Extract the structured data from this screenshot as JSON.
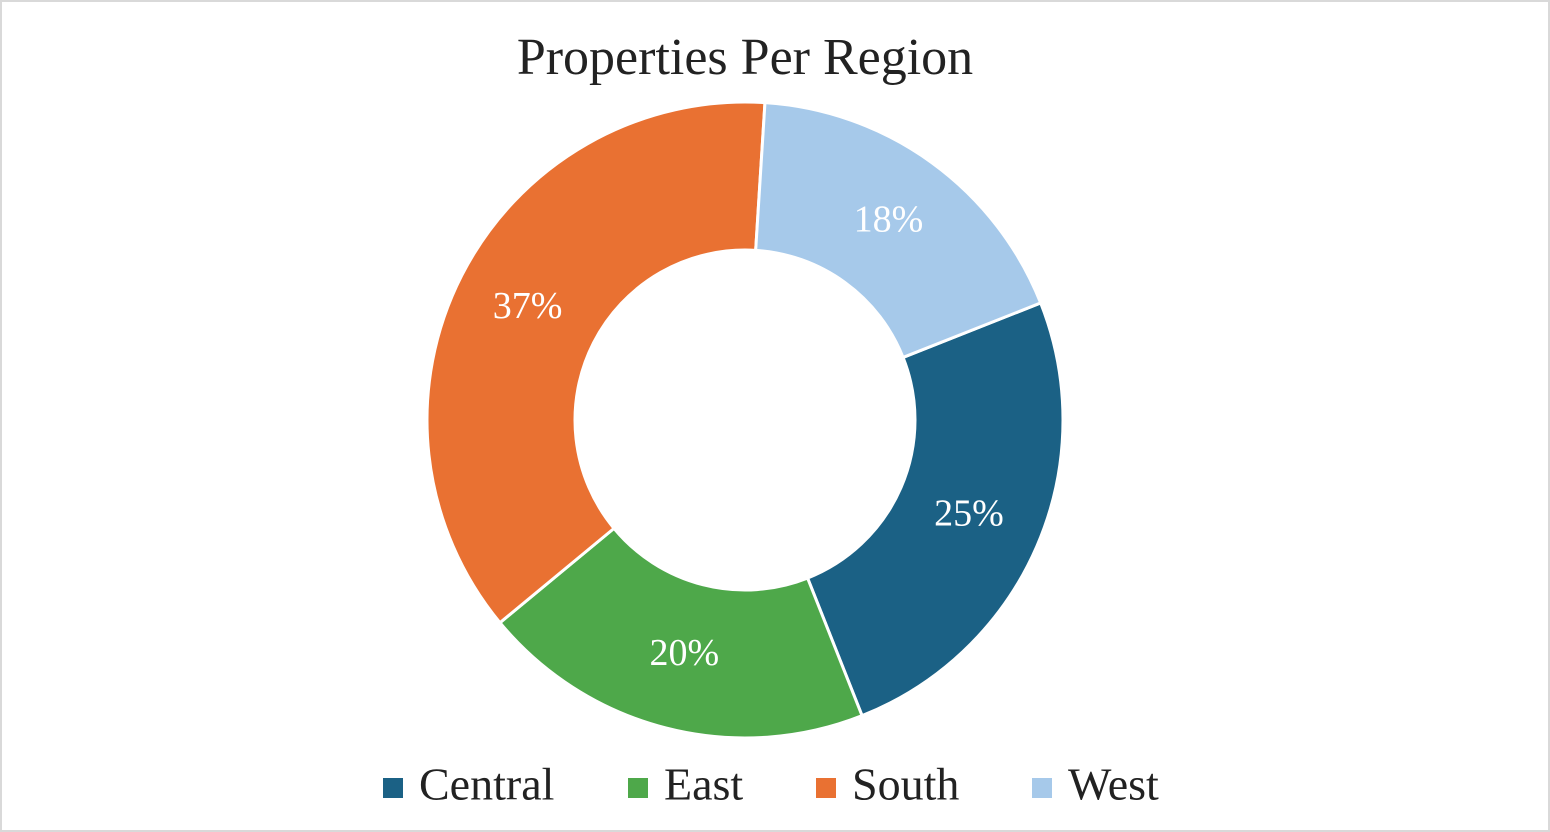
{
  "chart_data": {
    "type": "pie",
    "title": "Properties Per Region",
    "categories": [
      "Central",
      "East",
      "South",
      "West"
    ],
    "series": [
      {
        "values": [
          25,
          20,
          37,
          18
        ],
        "value_labels": [
          "25%",
          "20%",
          "37%",
          "18%"
        ],
        "colors": [
          "#1b6185",
          "#4ea84a",
          "#e97132",
          "#a6c9ea"
        ]
      }
    ],
    "legend": "bottom"
  }
}
